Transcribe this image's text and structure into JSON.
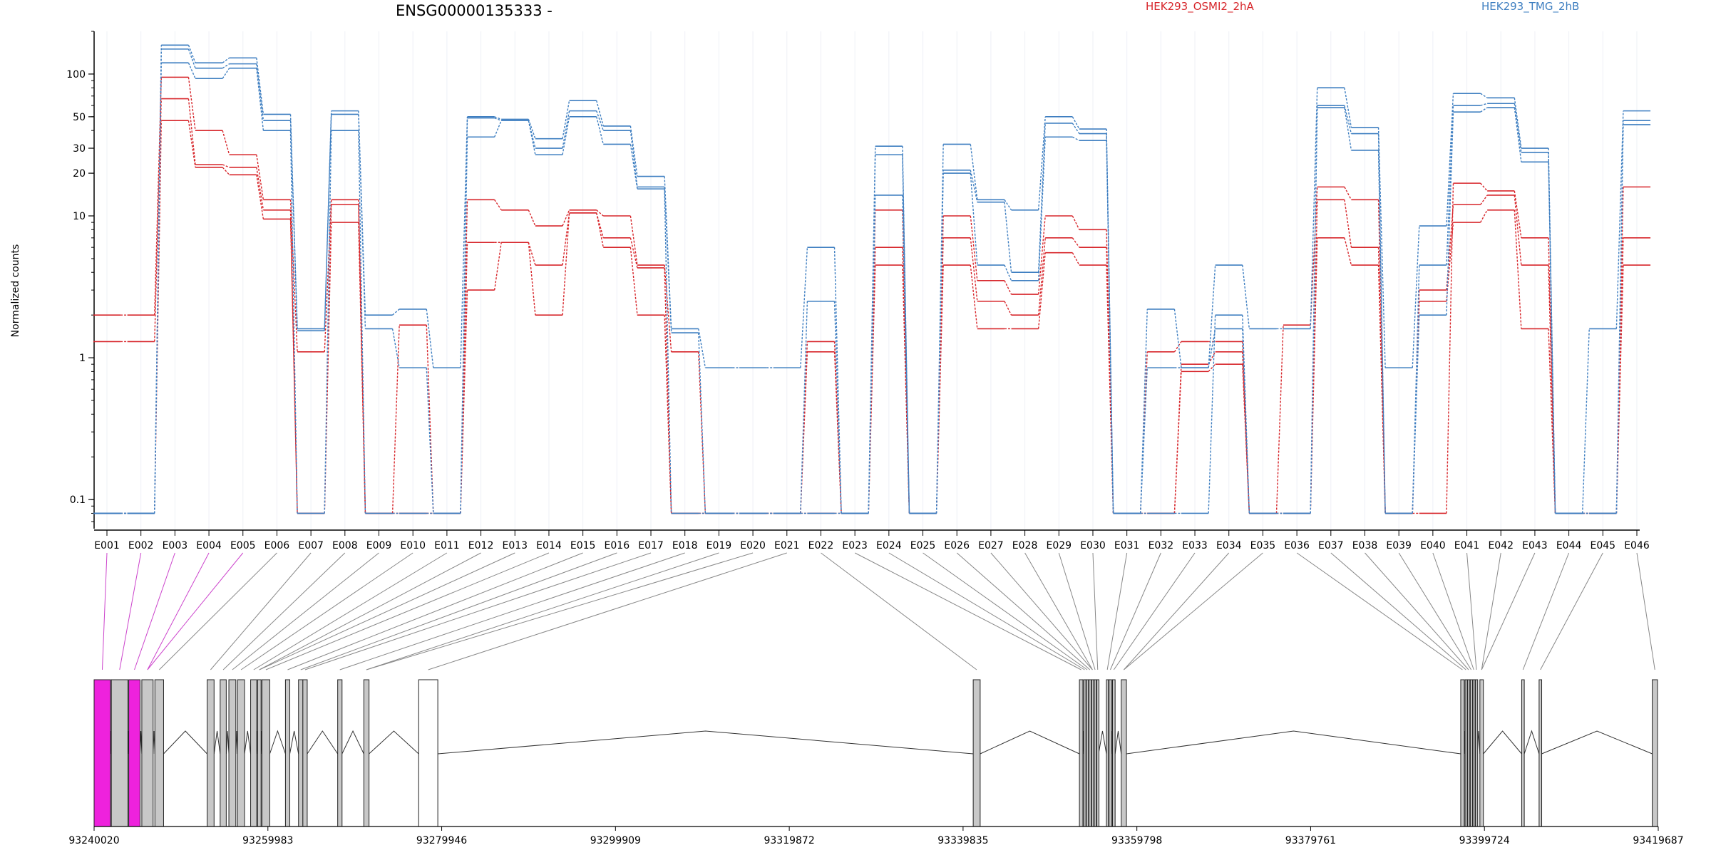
{
  "chart_data": {
    "type": "line",
    "title": "ENSG00000135333 -",
    "ylabel": "Normalized counts",
    "yscale": "log",
    "ylim": [
      0.07,
      200
    ],
    "yticks": [
      0.1,
      1,
      10,
      20,
      30,
      50,
      100
    ],
    "ytick_labels": [
      "0.1",
      "1",
      "10",
      "20",
      "30",
      "50",
      "100"
    ],
    "legend": [
      {
        "label": "HEK293_OSMI2_2hA",
        "color": "#d7262b"
      },
      {
        "label": "HEK293_TMG_2hB",
        "color": "#3f7fc1"
      }
    ],
    "categories": [
      "E001",
      "E002",
      "E003",
      "E004",
      "E005",
      "E006",
      "E007",
      "E008",
      "E009",
      "E010",
      "E011",
      "E012",
      "E013",
      "E014",
      "E015",
      "E016",
      "E017",
      "E018",
      "E019",
      "E020",
      "E021",
      "E022",
      "E023",
      "E024",
      "E025",
      "E026",
      "E027",
      "E028",
      "E029",
      "E030",
      "E031",
      "E032",
      "E033",
      "E034",
      "E035",
      "E036",
      "E037",
      "E038",
      "E039",
      "E040",
      "E041",
      "E042",
      "E043",
      "E044",
      "E045",
      "E046"
    ],
    "series": [
      {
        "group": "HEK293_OSMI2_2hA",
        "color": "#d7262b",
        "values": [
          2,
          2,
          95,
          40,
          27,
          13,
          1.1,
          13,
          0.08,
          1.7,
          0.08,
          13,
          11,
          8.5,
          11,
          10,
          4.5,
          1.1,
          0.08,
          0.08,
          0.08,
          1.3,
          0.08,
          11,
          0.08,
          10,
          3.5,
          2.8,
          10,
          8,
          0.08,
          1.1,
          1.3,
          1.3,
          0.08,
          1.7,
          16,
          13,
          0.08,
          0.08,
          17,
          15,
          7,
          0.08,
          0.08,
          16
        ]
      },
      {
        "group": "HEK293_OSMI2_2hA",
        "color": "#d7262b",
        "values": [
          1.3,
          1.3,
          67,
          23,
          22,
          11,
          0.08,
          12,
          0.08,
          0.08,
          0.08,
          6.5,
          6.5,
          4.5,
          10.5,
          7,
          4.3,
          0.08,
          0.08,
          0.08,
          0.08,
          1.1,
          0.08,
          6,
          0.08,
          7,
          2.5,
          2,
          7,
          6,
          0.08,
          0.08,
          0.9,
          1.1,
          0.08,
          0.08,
          13,
          6,
          0.08,
          3,
          12,
          14,
          4.5,
          0.08,
          0.08,
          7
        ]
      },
      {
        "group": "HEK293_OSMI2_2hA",
        "color": "#d7262b",
        "values": [
          0.08,
          0.08,
          47,
          22,
          19.5,
          9.5,
          0.08,
          9,
          0.08,
          0.08,
          0.08,
          3,
          6.5,
          2,
          10.5,
          6,
          2,
          0.08,
          0.08,
          0.08,
          0.08,
          0.08,
          0.08,
          4.5,
          0.08,
          4.5,
          1.6,
          1.6,
          5.5,
          4.5,
          0.08,
          0.08,
          0.8,
          0.9,
          0.08,
          0.08,
          7,
          4.5,
          0.08,
          2.5,
          9,
          11,
          1.6,
          0.08,
          0.08,
          4.5
        ]
      },
      {
        "group": "HEK293_TMG_2hB",
        "color": "#3f7fc1",
        "values": [
          0.08,
          0.08,
          160,
          120,
          130,
          52,
          1.6,
          55,
          2,
          2.2,
          0.85,
          50,
          48,
          35,
          65,
          43,
          19,
          1.6,
          0.85,
          0.85,
          0.85,
          6,
          0.08,
          31,
          0.08,
          32,
          13,
          11,
          50,
          41,
          0.08,
          2.2,
          0.85,
          4.5,
          1.6,
          1.6,
          80,
          42,
          0.85,
          8.5,
          73,
          68,
          30,
          0.08,
          1.6,
          55
        ]
      },
      {
        "group": "HEK293_TMG_2hB",
        "color": "#3f7fc1",
        "values": [
          0.08,
          0.08,
          150,
          110,
          118,
          47,
          1.55,
          52,
          1.6,
          0.85,
          0.08,
          49,
          47,
          30,
          55,
          40,
          16,
          1.5,
          0.08,
          0.08,
          0.08,
          2.5,
          0.08,
          27,
          0.08,
          21,
          12.5,
          4,
          45,
          38,
          0.08,
          0.85,
          0.85,
          1.6,
          0.08,
          0.08,
          60,
          38,
          0.08,
          4.5,
          60,
          62,
          28,
          0.08,
          0.08,
          47
        ]
      },
      {
        "group": "HEK293_TMG_2hB",
        "color": "#3f7fc1",
        "values": [
          0.08,
          0.08,
          120,
          93,
          110,
          40,
          0.08,
          40,
          0.08,
          0.08,
          0.08,
          36,
          47,
          27,
          50,
          32,
          15.5,
          0.08,
          0.08,
          0.08,
          0.08,
          0.08,
          0.08,
          14,
          0.08,
          20,
          4.5,
          3.5,
          36,
          34,
          0.08,
          0.08,
          0.08,
          2,
          0.08,
          0.08,
          58,
          29,
          0.08,
          2,
          54,
          58,
          24,
          0.08,
          0.08,
          44
        ]
      }
    ],
    "gene_model": {
      "coordinate_labels": [
        "93240020",
        "93259983",
        "93279946",
        "93299909",
        "93319872",
        "93339835",
        "93359798",
        "93379761",
        "93399724",
        "93419687"
      ],
      "coord_start": 93240020,
      "coord_end": 93419687,
      "exon_start_coords": [
        93240020,
        93242000,
        93244000,
        93245500,
        93247000,
        93253000,
        93254500,
        93255500,
        93256500,
        93258000,
        93258800,
        93259300,
        93262000,
        93263500,
        93264000,
        93268000,
        93271000,
        93277300,
        93341000,
        93353200,
        93353700,
        93354000,
        93354300,
        93354600,
        93354900,
        93355200,
        93356300,
        93356600,
        93357000,
        93358000,
        93397000,
        93397500,
        93397800,
        93398100,
        93398400,
        93398700,
        93399200,
        93404000,
        93406000,
        93419000
      ],
      "exon_end_coords": [
        93241900,
        93243900,
        93245300,
        93246800,
        93248000,
        93253800,
        93255200,
        93256300,
        93257300,
        93258700,
        93259200,
        93260200,
        93262500,
        93264000,
        93264500,
        93268500,
        93271600,
        93279500,
        93341800,
        93353600,
        93353900,
        93354200,
        93354500,
        93354800,
        93355100,
        93355400,
        93356500,
        93356900,
        93357300,
        93358600,
        93397400,
        93397700,
        93398000,
        93398300,
        93398600,
        93398900,
        93399600,
        93404300,
        93406300,
        93419600
      ]
    }
  }
}
